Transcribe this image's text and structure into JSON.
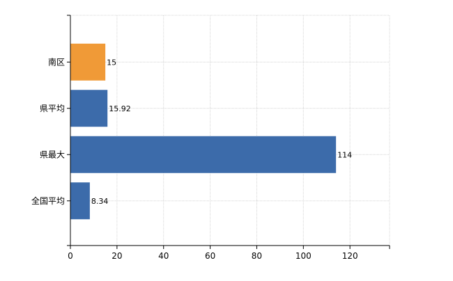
{
  "chart_data": {
    "type": "bar",
    "orientation": "horizontal",
    "categories": [
      "南区",
      "県平均",
      "県最大",
      "全国平均"
    ],
    "values": [
      15,
      15.92,
      114,
      8.34
    ],
    "value_labels": [
      "15",
      "15.92",
      "114",
      "8.34"
    ],
    "bar_colors": [
      "#F09A37",
      "#3C6BAA",
      "#3C6BAA",
      "#3C6BAA"
    ],
    "xlim": [
      0,
      137
    ],
    "x_ticks": [
      0,
      20,
      40,
      60,
      80,
      100,
      120
    ],
    "grid": true,
    "title": "",
    "xlabel": "",
    "ylabel": ""
  }
}
